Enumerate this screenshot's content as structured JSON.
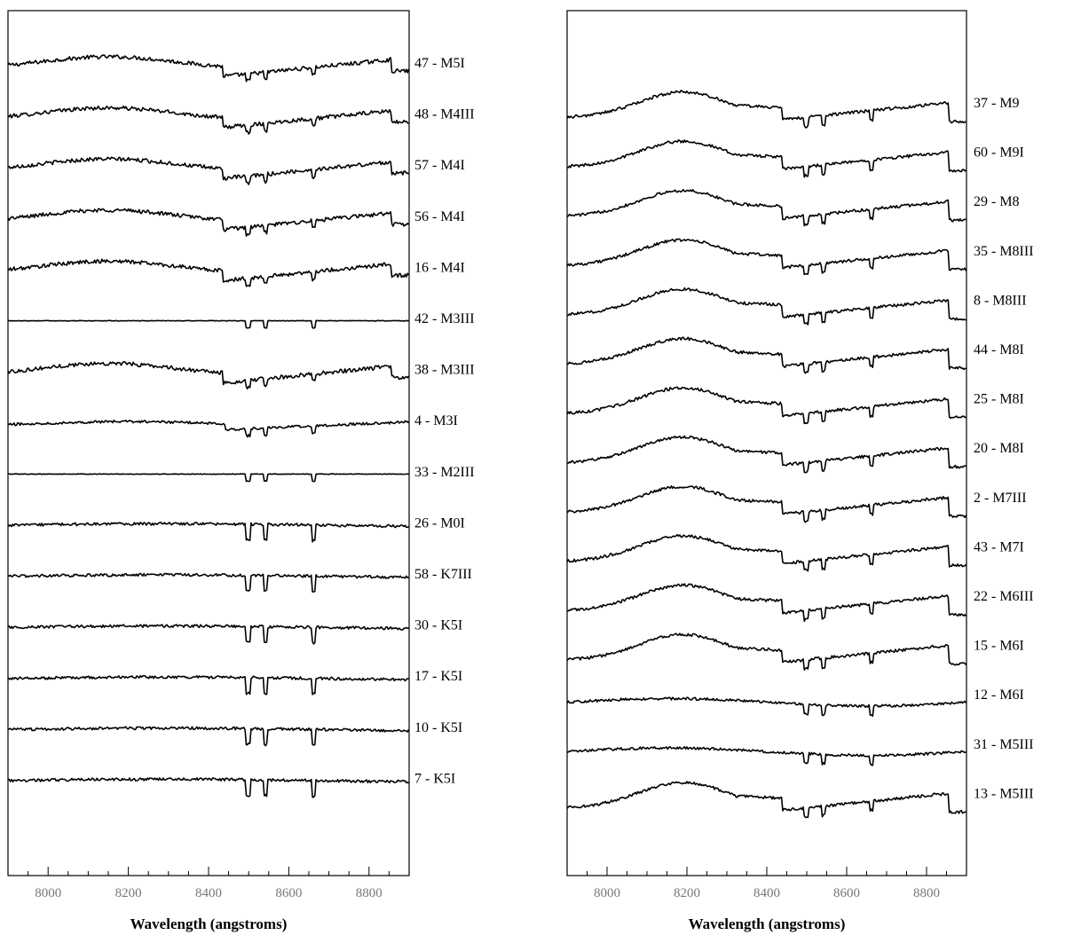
{
  "chart_data": [
    {
      "type": "line",
      "xlabel": "Wavelength (angstroms)",
      "xlim": [
        7900,
        8900
      ],
      "xticks": [
        8000,
        8200,
        8400,
        8600,
        8800
      ],
      "yaxis": "none (spectra offset vertically)",
      "grid": false,
      "legend": "labels right of each spectrum",
      "series": [
        {
          "name": "47 - M5I",
          "shape": "M-giant"
        },
        {
          "name": "48 - M4III",
          "shape": "M-giant"
        },
        {
          "name": "57 - M4I",
          "shape": "M-giant"
        },
        {
          "name": "56 - M4I",
          "shape": "M-giant"
        },
        {
          "name": "16 - M4I",
          "shape": "M-giant"
        },
        {
          "name": "42 - M3III",
          "shape": "flat"
        },
        {
          "name": "38 - M3III",
          "shape": "M-giant"
        },
        {
          "name": "4 - M3I",
          "shape": "M-mild"
        },
        {
          "name": "33 - M2III",
          "shape": "flat"
        },
        {
          "name": "26 - M0I",
          "shape": "K-type"
        },
        {
          "name": "58 - K7III",
          "shape": "K-type"
        },
        {
          "name": "30 - K5I",
          "shape": "K-type"
        },
        {
          "name": "17 - K5I",
          "shape": "K-type"
        },
        {
          "name": "10 - K5I",
          "shape": "K-type"
        },
        {
          "name": "7 - K5I",
          "shape": "K-type"
        }
      ]
    },
    {
      "type": "line",
      "xlabel": "Wavelength (angstroms)",
      "xlim": [
        7900,
        8900
      ],
      "xticks": [
        8000,
        8200,
        8400,
        8600,
        8800
      ],
      "yaxis": "none (spectra offset vertically)",
      "grid": false,
      "legend": "labels right of each spectrum",
      "series": [
        {
          "name": "37 - M9",
          "shape": "late-M"
        },
        {
          "name": "60 - M9I",
          "shape": "late-M"
        },
        {
          "name": "29 - M8",
          "shape": "late-M"
        },
        {
          "name": "35 - M8III",
          "shape": "late-M"
        },
        {
          "name": "8 - M8III",
          "shape": "late-M"
        },
        {
          "name": "44 - M8I",
          "shape": "late-M"
        },
        {
          "name": "25 - M8I",
          "shape": "late-M"
        },
        {
          "name": "20 - M8I",
          "shape": "late-M"
        },
        {
          "name": "2 - M7III",
          "shape": "late-M"
        },
        {
          "name": "43 - M7I",
          "shape": "late-M"
        },
        {
          "name": "22 - M6III",
          "shape": "late-M"
        },
        {
          "name": "15 - M6I",
          "shape": "late-M"
        },
        {
          "name": "12 - M6I",
          "shape": "mid-M"
        },
        {
          "name": "31 - M5III",
          "shape": "mid-M"
        },
        {
          "name": "13 - M5III",
          "shape": "late-M"
        }
      ]
    }
  ]
}
